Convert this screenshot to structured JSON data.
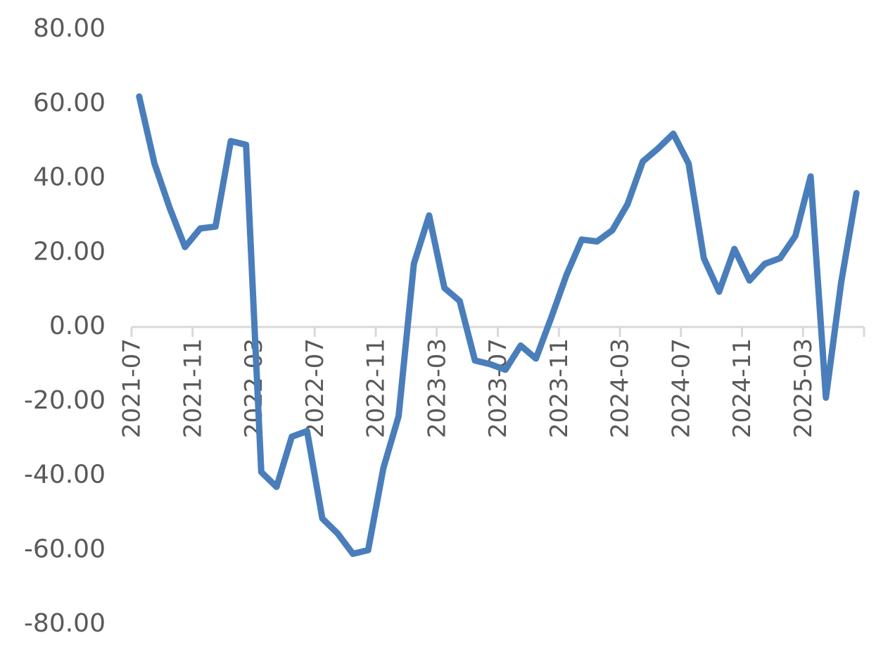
{
  "chart_data": {
    "type": "line",
    "categories": [
      "2021-07",
      null,
      null,
      null,
      "2021-11",
      null,
      null,
      null,
      "2022-03",
      null,
      null,
      null,
      "2022-07",
      null,
      null,
      null,
      "2022-11",
      null,
      null,
      null,
      "2023-03",
      null,
      null,
      null,
      "2023-07",
      null,
      null,
      null,
      "2023-11",
      null,
      null,
      null,
      "2024-03",
      null,
      null,
      null,
      "2024-07",
      null,
      null,
      null,
      "2024-11",
      null,
      null,
      null,
      "2025-03",
      null,
      null,
      null
    ],
    "series": [
      {
        "color": "#4a7ebb",
        "values": [
          62,
          44,
          32,
          21.5,
          26.5,
          27,
          50,
          49,
          -39,
          -43,
          -29.5,
          -28,
          -51.5,
          -55.5,
          -61,
          -60,
          -38,
          -24,
          17,
          30,
          10.5,
          7,
          -9,
          -10,
          -11.5,
          -5,
          -8.5,
          2.5,
          14,
          23.5,
          23,
          26,
          33,
          44.5,
          48,
          52,
          44,
          18.5,
          9.5,
          21,
          12.5,
          17,
          18.5,
          24.5,
          40.5,
          -19,
          12,
          36
        ]
      }
    ],
    "ylim": [
      -80,
      80
    ],
    "yticks": [
      {
        "value": -80,
        "label": "-80.00"
      },
      {
        "value": -60,
        "label": "-60.00"
      },
      {
        "value": -40,
        "label": "-40.00"
      },
      {
        "value": -20,
        "label": "-20.00"
      },
      {
        "value": 0,
        "label": "0.00"
      },
      {
        "value": 20,
        "label": "20.00"
      },
      {
        "value": 40,
        "label": "40.00"
      },
      {
        "value": 60,
        "label": "60.00"
      },
      {
        "value": 80,
        "label": "80.00"
      }
    ],
    "grid": false
  }
}
